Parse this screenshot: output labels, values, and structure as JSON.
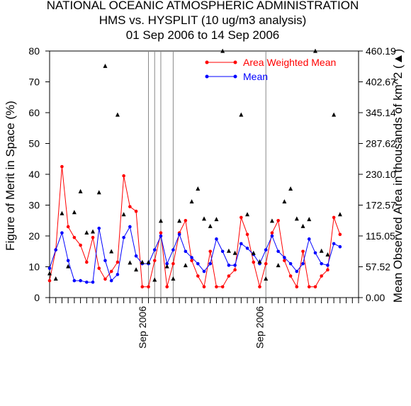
{
  "chart_data": {
    "type": "line",
    "title_lines": [
      "NATIONAL OCEANIC ATMOSPHERIC ADMINISTRATION",
      "HMS vs. HYSPLIT (10 ug/m3 analysis)",
      "01 Sep 2006 to 14 Sep 2006"
    ],
    "ylabel": "Figure of Merit in Space (%)",
    "ylabel_right": "Mean Observed Area in thousands of km^2 (▲)",
    "ylim": [
      0,
      80
    ],
    "y_ticks": [
      "0",
      "10",
      "20",
      "30",
      "40",
      "50",
      "60",
      "70",
      "80"
    ],
    "ylim_right": [
      0.0,
      460.19
    ],
    "y_ticks_right": [
      "0.00",
      "57.52",
      "115.05",
      "172.57",
      "230.10",
      "287.62",
      "345.14",
      "402.67",
      "460.19"
    ],
    "x_tick_labels": [
      {
        "text": "Sep 2006",
        "x": 15
      },
      {
        "text": "Sep 2006",
        "x": 34
      }
    ],
    "x_range": [
      0,
      50
    ],
    "vertical_lines_x": [
      16,
      17,
      18,
      20,
      35
    ],
    "grid": false,
    "legend": {
      "placement": "top-right"
    },
    "series": [
      {
        "name": "Area Weighted Mean",
        "color": "#ff0000",
        "points": [
          [
            0,
            5.5
          ],
          [
            1,
            15.5
          ],
          [
            2,
            42.5
          ],
          [
            3,
            23
          ],
          [
            4,
            19.5
          ],
          [
            5,
            17
          ],
          [
            6,
            11.5
          ],
          [
            7,
            19.5
          ],
          [
            8,
            9.5
          ],
          [
            9,
            6
          ],
          [
            10,
            8.5
          ],
          [
            11,
            11.5
          ],
          [
            12,
            39.5
          ],
          [
            13,
            29.5
          ],
          [
            14,
            28
          ],
          [
            15,
            3.5
          ],
          [
            16,
            3.5
          ],
          [
            17,
            12
          ],
          [
            18,
            21
          ],
          [
            19,
            3.5
          ],
          [
            20,
            11
          ],
          [
            21,
            21
          ],
          [
            22,
            25
          ],
          [
            23,
            12
          ],
          [
            24,
            7
          ],
          [
            25,
            3.5
          ],
          [
            26,
            15
          ],
          [
            27,
            3.5
          ],
          [
            28,
            3.5
          ],
          [
            29,
            7
          ],
          [
            30,
            9
          ],
          [
            31,
            26
          ],
          [
            32,
            20.5
          ],
          [
            33,
            11.5
          ],
          [
            34,
            3.5
          ],
          [
            35,
            11
          ],
          [
            36,
            21
          ],
          [
            37,
            25
          ],
          [
            38,
            12
          ],
          [
            39,
            7
          ],
          [
            40,
            3.5
          ],
          [
            41,
            15
          ],
          [
            42,
            3.5
          ],
          [
            43,
            3.5
          ],
          [
            44,
            7
          ],
          [
            45,
            9
          ],
          [
            46,
            26
          ],
          [
            47,
            20.5
          ]
        ]
      },
      {
        "name": "Mean",
        "color": "#0000ff",
        "points": [
          [
            0,
            9.5
          ],
          [
            1,
            15.5
          ],
          [
            2,
            21
          ],
          [
            3,
            12
          ],
          [
            4,
            5.5
          ],
          [
            5,
            5.5
          ],
          [
            6,
            5
          ],
          [
            7,
            5
          ],
          [
            8,
            22.5
          ],
          [
            9,
            12
          ],
          [
            10,
            5.5
          ],
          [
            11,
            7.5
          ],
          [
            12,
            19.5
          ],
          [
            13,
            23
          ],
          [
            14,
            13.5
          ],
          [
            15,
            11
          ],
          [
            16,
            11
          ],
          [
            17,
            15.5
          ],
          [
            18,
            20
          ],
          [
            19,
            11
          ],
          [
            20,
            15.5
          ],
          [
            21,
            20.5
          ],
          [
            22,
            15
          ],
          [
            23,
            13
          ],
          [
            24,
            11
          ],
          [
            25,
            8.5
          ],
          [
            26,
            11
          ],
          [
            27,
            19
          ],
          [
            28,
            15
          ],
          [
            29,
            10.5
          ],
          [
            30,
            10.5
          ],
          [
            31,
            17.5
          ],
          [
            32,
            16
          ],
          [
            33,
            14
          ],
          [
            34,
            11
          ],
          [
            35,
            15.5
          ],
          [
            36,
            20
          ],
          [
            37,
            15
          ],
          [
            38,
            13
          ],
          [
            39,
            11
          ],
          [
            40,
            8.5
          ],
          [
            41,
            11
          ],
          [
            42,
            19
          ],
          [
            43,
            14.5
          ],
          [
            44,
            11
          ],
          [
            45,
            10.5
          ],
          [
            46,
            17.5
          ],
          [
            47,
            16.5
          ]
        ]
      },
      {
        "name": "Mean Observed Area",
        "color": "#000000",
        "marker": "triangle",
        "points": [
          [
            0,
            45
          ],
          [
            1,
            35
          ],
          [
            2,
            157
          ],
          [
            3,
            58
          ],
          [
            4,
            159
          ],
          [
            5,
            198
          ],
          [
            6,
            121
          ],
          [
            7,
            123
          ],
          [
            8,
            196
          ],
          [
            9,
            432
          ],
          [
            10,
            86
          ],
          [
            11,
            341
          ],
          [
            12,
            155
          ],
          [
            13,
            65
          ],
          [
            14,
            52
          ],
          [
            15,
            66
          ],
          [
            16,
            66
          ],
          [
            17,
            33
          ],
          [
            18,
            143
          ],
          [
            19,
            58
          ],
          [
            20,
            35
          ],
          [
            21,
            143
          ],
          [
            22,
            60
          ],
          [
            23,
            179
          ],
          [
            24,
            203
          ],
          [
            25,
            147
          ],
          [
            26,
            133
          ],
          [
            27,
            146
          ],
          [
            28,
            460
          ],
          [
            29,
            87
          ],
          [
            30,
            83
          ],
          [
            31,
            341
          ],
          [
            32,
            155
          ],
          [
            33,
            83
          ],
          [
            34,
            67
          ],
          [
            35,
            35
          ],
          [
            36,
            143
          ],
          [
            37,
            60
          ],
          [
            38,
            179
          ],
          [
            39,
            203
          ],
          [
            40,
            147
          ],
          [
            41,
            133
          ],
          [
            42,
            146
          ],
          [
            43,
            460
          ],
          [
            44,
            87
          ],
          [
            45,
            80
          ],
          [
            46,
            341
          ],
          [
            47,
            155
          ]
        ]
      }
    ]
  }
}
